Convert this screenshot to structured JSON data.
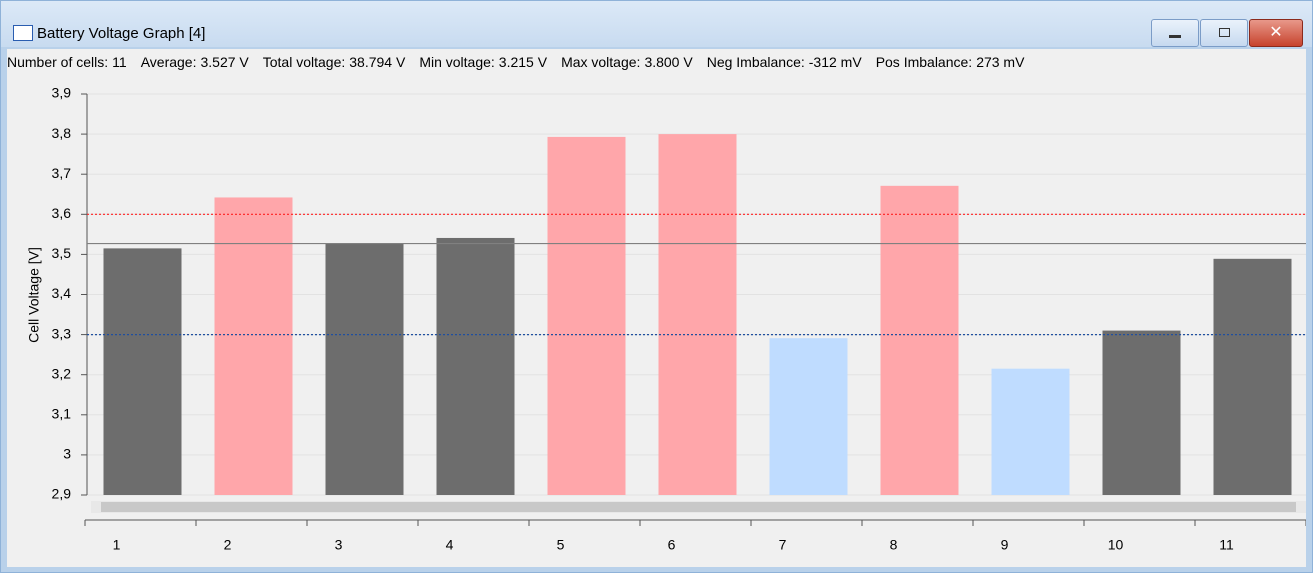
{
  "window": {
    "title": "Battery Voltage Graph [4]"
  },
  "stats": [
    {
      "label": "Number of cells:",
      "value": "11"
    },
    {
      "label": "Average:",
      "value": "3.527 V"
    },
    {
      "label": "Total voltage:",
      "value": "38.794 V"
    },
    {
      "label": "Min voltage:",
      "value": "3.215 V"
    },
    {
      "label": "Max voltage:",
      "value": "3.800 V"
    },
    {
      "label": "Neg Imbalance:",
      "value": "-312 mV"
    },
    {
      "label": "Pos Imbalance:",
      "value": "273 mV"
    }
  ],
  "chart_data": {
    "type": "bar",
    "y_label": "Cell Voltage [V]",
    "categories": [
      "1",
      "2",
      "3",
      "4",
      "5",
      "6",
      "7",
      "8",
      "9",
      "10",
      "11"
    ],
    "values": [
      3.515,
      3.642,
      3.527,
      3.541,
      3.793,
      3.8,
      3.291,
      3.671,
      3.215,
      3.31,
      3.489
    ],
    "colors": [
      "#6d6d6d",
      "#ffa6aa",
      "#6d6d6d",
      "#6d6d6d",
      "#ffa6aa",
      "#ffa6aa",
      "#bfdcff",
      "#ffa6aa",
      "#bfdcff",
      "#6d6d6d",
      "#6d6d6d"
    ],
    "ylim": [
      2.9,
      3.9
    ],
    "yticks": [
      {
        "value": 2.9,
        "label": "2,9"
      },
      3,
      {
        "value": 3.1,
        "label": "3,1"
      },
      {
        "value": 3.2,
        "label": "3,2"
      },
      {
        "value": 3.3,
        "label": "3,3"
      },
      {
        "value": 3.4,
        "label": "3,4"
      },
      {
        "value": 3.5,
        "label": "3,5"
      },
      {
        "value": 3.6,
        "label": "3,6"
      },
      {
        "value": 3.7,
        "label": "3,7"
      },
      {
        "value": 3.8,
        "label": "3,8"
      },
      {
        "value": 3.9,
        "label": "3,9"
      }
    ],
    "grid": true,
    "reference_lines": [
      {
        "value": 3.6,
        "color": "#ff2020",
        "dashed": true
      },
      {
        "value": 3.3,
        "color": "#1f4f9f",
        "dashed": true
      },
      {
        "value": 3.527,
        "color": "#808080",
        "dashed": false
      }
    ]
  }
}
